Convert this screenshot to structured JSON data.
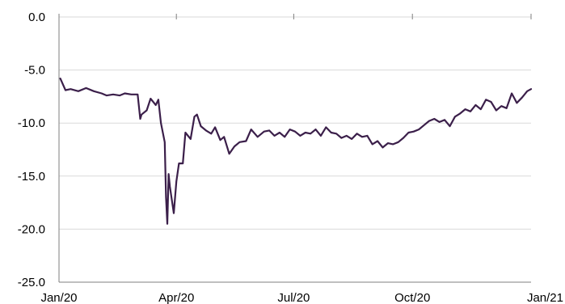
{
  "chart_data": {
    "type": "line",
    "title": "",
    "xlabel": "",
    "ylabel": "",
    "ylim": [
      -25.0,
      0.0
    ],
    "yticks": [
      "0.0",
      "-5.0",
      "-10.0",
      "-15.0",
      "-20.0",
      "-25.0"
    ],
    "ytick_values": [
      0,
      -5,
      -10,
      -15,
      -20,
      -25
    ],
    "xlim": [
      "2020-01-01",
      "2021-01-01"
    ],
    "xticks": [
      "Jan/20",
      "Apr/20",
      "Jul/20",
      "Oct/20",
      "Jan/21"
    ],
    "xtick_dates": [
      "2020-01-01",
      "2020-04-01",
      "2020-07-01",
      "2020-10-01",
      "2021-01-01"
    ],
    "grid": true,
    "legend": "none",
    "series": [
      {
        "color": "#3b1f4a",
        "x": [
          "2020-01-02",
          "2020-01-06",
          "2020-01-10",
          "2020-01-16",
          "2020-01-22",
          "2020-01-28",
          "2020-02-03",
          "2020-02-07",
          "2020-02-12",
          "2020-02-17",
          "2020-02-21",
          "2020-02-26",
          "2020-03-02",
          "2020-03-04",
          "2020-03-05",
          "2020-03-09",
          "2020-03-12",
          "2020-03-16",
          "2020-03-18",
          "2020-03-20",
          "2020-03-23",
          "2020-03-24",
          "2020-03-25",
          "2020-03-26",
          "2020-03-27",
          "2020-03-30",
          "2020-04-01",
          "2020-04-03",
          "2020-04-06",
          "2020-04-08",
          "2020-04-12",
          "2020-04-15",
          "2020-04-17",
          "2020-04-20",
          "2020-04-24",
          "2020-04-28",
          "2020-05-01",
          "2020-05-05",
          "2020-05-08",
          "2020-05-12",
          "2020-05-16",
          "2020-05-20",
          "2020-05-25",
          "2020-05-29",
          "2020-06-03",
          "2020-06-08",
          "2020-06-12",
          "2020-06-16",
          "2020-06-20",
          "2020-06-24",
          "2020-06-28",
          "2020-07-02",
          "2020-07-06",
          "2020-07-10",
          "2020-07-14",
          "2020-07-18",
          "2020-07-22",
          "2020-07-26",
          "2020-07-30",
          "2020-08-03",
          "2020-08-07",
          "2020-08-11",
          "2020-08-15",
          "2020-08-19",
          "2020-08-23",
          "2020-08-27",
          "2020-08-31",
          "2020-09-04",
          "2020-09-08",
          "2020-09-12",
          "2020-09-16",
          "2020-09-20",
          "2020-09-24",
          "2020-09-28",
          "2020-10-02",
          "2020-10-06",
          "2020-10-10",
          "2020-10-14",
          "2020-10-18",
          "2020-10-22",
          "2020-10-26",
          "2020-10-30",
          "2020-11-03",
          "2020-11-07",
          "2020-11-11",
          "2020-11-15",
          "2020-11-19",
          "2020-11-23",
          "2020-11-27",
          "2020-12-01",
          "2020-12-05",
          "2020-12-09",
          "2020-12-13",
          "2020-12-17",
          "2020-12-21",
          "2020-12-25",
          "2020-12-29",
          "2021-01-01"
        ],
        "y": [
          -5.8,
          -6.9,
          -6.8,
          -7.0,
          -6.7,
          -7.0,
          -7.2,
          -7.4,
          -7.3,
          -7.4,
          -7.2,
          -7.3,
          -7.3,
          -9.6,
          -9.2,
          -8.8,
          -7.7,
          -8.3,
          -7.8,
          -10.0,
          -11.8,
          -17.0,
          -19.5,
          -14.8,
          -16.0,
          -18.5,
          -15.5,
          -13.8,
          -13.8,
          -10.9,
          -11.5,
          -9.4,
          -9.2,
          -10.3,
          -10.7,
          -11.0,
          -10.4,
          -11.6,
          -11.3,
          -12.9,
          -12.2,
          -11.8,
          -11.7,
          -10.6,
          -11.3,
          -10.8,
          -10.7,
          -11.2,
          -10.9,
          -11.3,
          -10.6,
          -10.8,
          -11.2,
          -10.9,
          -11.0,
          -10.6,
          -11.2,
          -10.4,
          -10.9,
          -11.0,
          -11.4,
          -11.2,
          -11.5,
          -11.0,
          -11.3,
          -11.2,
          -12.0,
          -11.7,
          -12.3,
          -11.9,
          -12.0,
          -11.8,
          -11.4,
          -10.9,
          -10.8,
          -10.6,
          -10.2,
          -9.8,
          -9.6,
          -9.9,
          -9.7,
          -10.3,
          -9.4,
          -9.1,
          -8.7,
          -8.9,
          -8.3,
          -8.7,
          -7.8,
          -8.0,
          -8.8,
          -8.4,
          -8.6,
          -7.2,
          -8.1,
          -7.6,
          -7.0,
          -6.8
        ]
      }
    ]
  }
}
